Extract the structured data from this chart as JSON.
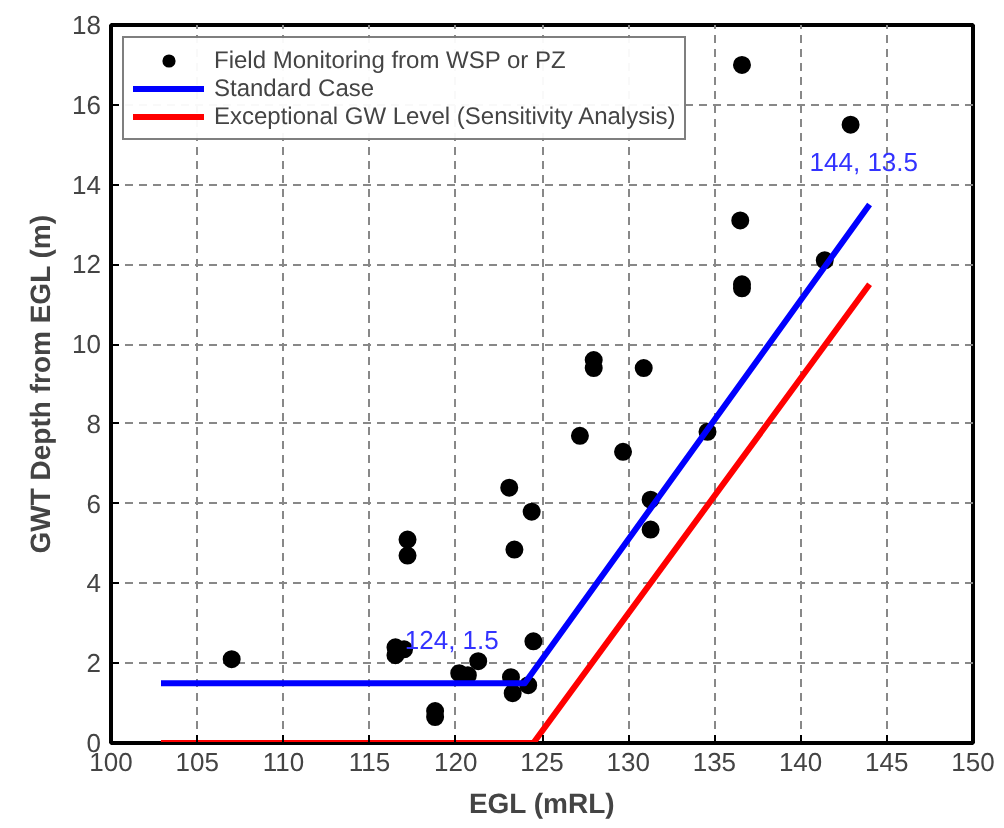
{
  "chart_data": {
    "type": "scatter",
    "xlabel": "EGL (mRL)",
    "ylabel": "GWT Depth from EGL (m)",
    "xlim": [
      100,
      150
    ],
    "ylim": [
      0,
      18
    ],
    "xticks": [
      100,
      105,
      110,
      115,
      120,
      125,
      130,
      135,
      140,
      145,
      150
    ],
    "yticks": [
      0,
      2,
      4,
      6,
      8,
      10,
      12,
      14,
      16,
      18
    ],
    "grid": true,
    "legend": "top left",
    "series": [
      {
        "name": "Field Monitoring from WSP or PZ",
        "marker": "circle",
        "color": "#000000",
        "x": [
          107.0,
          116.5,
          116.5,
          117.0,
          117.2,
          117.2,
          118.8,
          118.8,
          120.2,
          120.7,
          121.3,
          123.1,
          123.4,
          124.4,
          124.5,
          123.2,
          124.2,
          123.3,
          127.2,
          128.0,
          128.0,
          129.7,
          130.9,
          131.3,
          131.3,
          134.6,
          136.6,
          136.5,
          136.6,
          136.6,
          141.4,
          142.9
        ],
        "values": [
          2.1,
          2.4,
          2.2,
          2.35,
          5.1,
          4.7,
          0.8,
          0.65,
          1.75,
          1.7,
          2.05,
          6.4,
          4.85,
          5.8,
          2.55,
          1.65,
          1.45,
          1.25,
          7.7,
          9.6,
          9.4,
          7.3,
          9.4,
          6.1,
          5.35,
          7.8,
          17.0,
          13.1,
          11.5,
          11.4,
          12.1,
          15.5
        ]
      },
      {
        "name": "Standard Case",
        "type": "line",
        "color": "#0000ff",
        "x": [
          102.9,
          124,
          144
        ],
        "values": [
          1.5,
          1.5,
          13.5
        ]
      },
      {
        "name": "Exceptional GW Level (Sensitivity Analysis)",
        "type": "line",
        "color": "#ff0000",
        "x": [
          102.9,
          124.5,
          144
        ],
        "values": [
          0,
          0,
          11.5
        ]
      }
    ],
    "annotations": [
      {
        "text": "124, 1.5",
        "x": 124,
        "y": 1.5
      },
      {
        "text": "144, 13.5",
        "x": 144,
        "y": 13.5
      }
    ]
  }
}
